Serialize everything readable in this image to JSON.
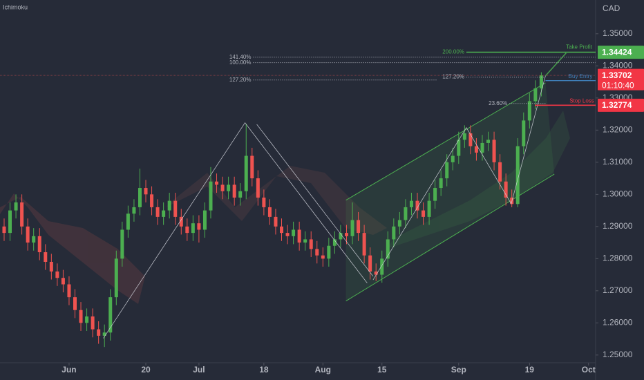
{
  "chart_data": {
    "type": "candlestick",
    "indicator_label": "Ichimoku",
    "currency": "CAD",
    "countdown": "01:10:40",
    "up_color": "#4caf50",
    "down_color": "#ef5350",
    "grid": false,
    "xlim": [
      -11.7,
      89.2
    ],
    "ylim": [
      1.2476,
      1.3605
    ],
    "xticks": [
      {
        "value": 0,
        "label": "Jun"
      },
      {
        "value": 13,
        "label": "20"
      },
      {
        "value": 22,
        "label": "Jul"
      },
      {
        "value": 33,
        "label": "18"
      },
      {
        "value": 43,
        "label": "Aug"
      },
      {
        "value": 53,
        "label": "15"
      },
      {
        "value": 66,
        "label": "Sep"
      },
      {
        "value": 78,
        "label": "19"
      },
      {
        "value": 88,
        "label": "Oct"
      }
    ],
    "yticks": [
      {
        "value": 1.35,
        "label": "1.35000"
      },
      {
        "value": 1.34,
        "label": "1.34000"
      },
      {
        "value": 1.33,
        "label": "1.33000"
      },
      {
        "value": 1.32,
        "label": "1.32000"
      },
      {
        "value": 1.31,
        "label": "1.31000"
      },
      {
        "value": 1.3,
        "label": "1.30000"
      },
      {
        "value": 1.29,
        "label": "1.29000"
      },
      {
        "value": 1.28,
        "label": "1.28000"
      },
      {
        "value": 1.27,
        "label": "1.27000"
      },
      {
        "value": 1.26,
        "label": "1.26000"
      },
      {
        "value": 1.25,
        "label": "1.25000"
      }
    ],
    "x": [
      -11,
      -10,
      -9,
      -8,
      -7,
      -6,
      -5,
      -4,
      -3,
      -2,
      -1,
      0,
      1,
      2,
      3,
      4,
      5,
      6,
      7,
      8,
      9,
      10,
      11,
      12,
      13,
      14,
      15,
      16,
      17,
      18,
      19,
      20,
      21,
      22,
      23,
      24,
      25,
      26,
      27,
      28,
      29,
      30,
      31,
      32,
      33,
      34,
      35,
      36,
      37,
      38,
      39,
      40,
      41,
      42,
      43,
      44,
      45,
      46,
      47,
      48,
      49,
      50,
      51,
      52,
      53,
      54,
      55,
      56,
      57,
      58,
      59,
      60,
      61,
      62,
      63,
      64,
      65,
      66,
      67,
      68,
      69,
      70,
      71,
      72,
      73,
      74,
      75,
      76,
      77,
      78,
      79,
      80
    ],
    "open": [
      1.29,
      1.288,
      1.295,
      1.2975,
      1.29,
      1.285,
      1.287,
      1.282,
      1.279,
      1.276,
      1.274,
      1.272,
      1.268,
      1.264,
      1.26,
      1.262,
      1.258,
      1.256,
      1.257,
      1.268,
      1.28,
      1.289,
      1.294,
      1.296,
      1.302,
      1.3,
      1.296,
      1.293,
      1.295,
      1.298,
      1.293,
      1.29,
      1.288,
      1.291,
      1.289,
      1.295,
      1.304,
      1.303,
      1.301,
      1.303,
      1.299,
      1.301,
      1.312,
      1.305,
      1.299,
      1.296,
      1.293,
      1.29,
      1.288,
      1.287,
      1.289,
      1.285,
      1.286,
      1.283,
      1.281,
      1.28,
      1.284,
      1.286,
      1.288,
      1.287,
      1.292,
      1.288,
      1.281,
      1.276,
      1.275,
      1.28,
      1.286,
      1.29,
      1.292,
      1.296,
      1.298,
      1.295,
      1.293,
      1.298,
      1.302,
      1.305,
      1.31,
      1.312,
      1.317,
      1.319,
      1.315,
      1.313,
      1.316,
      1.317,
      1.31,
      1.304,
      1.299,
      1.297,
      1.315,
      1.323,
      1.329,
      1.333
    ],
    "high": [
      1.2925,
      1.2975,
      1.3,
      1.3,
      1.2925,
      1.2895,
      1.2895,
      1.2845,
      1.2815,
      1.2785,
      1.2765,
      1.2745,
      1.2705,
      1.2665,
      1.2645,
      1.2645,
      1.2605,
      1.2595,
      1.2705,
      1.2825,
      1.2915,
      1.2965,
      1.2985,
      1.308,
      1.3045,
      1.3025,
      1.2985,
      1.2975,
      1.3005,
      1.3005,
      1.2955,
      1.2925,
      1.2935,
      1.2935,
      1.2975,
      1.3085,
      1.3065,
      1.3055,
      1.3055,
      1.3055,
      1.3035,
      1.322,
      1.3145,
      1.3075,
      1.3015,
      1.2985,
      1.2955,
      1.2925,
      1.2905,
      1.2915,
      1.2915,
      1.2885,
      1.2885,
      1.2855,
      1.2835,
      1.2865,
      1.2885,
      1.2905,
      1.2905,
      1.2975,
      1.2945,
      1.2905,
      1.2835,
      1.2785,
      1.2825,
      1.2885,
      1.2925,
      1.2945,
      1.2985,
      1.3005,
      1.3005,
      1.2975,
      1.3005,
      1.3045,
      1.3075,
      1.3125,
      1.3145,
      1.3195,
      1.3215,
      1.3215,
      1.3175,
      1.3185,
      1.3195,
      1.3195,
      1.3125,
      1.3065,
      1.3015,
      1.3175,
      1.3255,
      1.3315,
      1.3355,
      1.338
    ],
    "low": [
      1.2855,
      1.2855,
      1.2925,
      1.2875,
      1.2825,
      1.2825,
      1.2795,
      1.2765,
      1.2735,
      1.2715,
      1.2695,
      1.2655,
      1.2615,
      1.2575,
      1.2575,
      1.2555,
      1.2535,
      1.2525,
      1.2545,
      1.2655,
      1.2775,
      1.2865,
      1.2915,
      1.2935,
      1.2975,
      1.2935,
      1.2905,
      1.2905,
      1.2925,
      1.2905,
      1.2875,
      1.2855,
      1.2855,
      1.285,
      1.2865,
      1.2925,
      1.3005,
      1.2985,
      1.2985,
      1.2965,
      1.2965,
      1.2985,
      1.3025,
      1.2965,
      1.2935,
      1.2905,
      1.2875,
      1.2855,
      1.2845,
      1.2845,
      1.2825,
      1.2825,
      1.2805,
      1.2785,
      1.2775,
      1.2775,
      1.2815,
      1.2835,
      1.2845,
      1.2845,
      1.2855,
      1.2785,
      1.2735,
      1.273,
      1.2725,
      1.2775,
      1.2835,
      1.2875,
      1.2895,
      1.2935,
      1.2925,
      1.2905,
      1.2905,
      1.2955,
      1.2995,
      1.3025,
      1.3075,
      1.3095,
      1.3145,
      1.3125,
      1.3105,
      1.3105,
      1.3135,
      1.3075,
      1.3015,
      1.2965,
      1.296,
      1.296,
      1.3125,
      1.3205,
      1.3265,
      1.3305
    ],
    "close": [
      1.288,
      1.295,
      1.2975,
      1.29,
      1.285,
      1.287,
      1.282,
      1.279,
      1.276,
      1.274,
      1.272,
      1.268,
      1.264,
      1.26,
      1.262,
      1.258,
      1.256,
      1.257,
      1.268,
      1.28,
      1.289,
      1.294,
      1.296,
      1.302,
      1.3,
      1.296,
      1.293,
      1.295,
      1.298,
      1.293,
      1.29,
      1.288,
      1.291,
      1.289,
      1.295,
      1.304,
      1.303,
      1.301,
      1.303,
      1.299,
      1.301,
      1.312,
      1.305,
      1.299,
      1.296,
      1.293,
      1.29,
      1.288,
      1.287,
      1.289,
      1.285,
      1.286,
      1.283,
      1.281,
      1.28,
      1.284,
      1.286,
      1.288,
      1.287,
      1.292,
      1.288,
      1.281,
      1.276,
      1.275,
      1.28,
      1.286,
      1.29,
      1.292,
      1.296,
      1.298,
      1.295,
      1.293,
      1.298,
      1.302,
      1.305,
      1.31,
      1.312,
      1.317,
      1.319,
      1.315,
      1.313,
      1.316,
      1.317,
      1.31,
      1.304,
      1.299,
      1.297,
      1.315,
      1.323,
      1.329,
      1.333,
      1.33702
    ],
    "levels": [
      {
        "label": "141.40%",
        "value": 1.3427,
        "x0": 31.2,
        "x1": 89.2,
        "color": "#b2b5be",
        "dashed": true
      },
      {
        "label": "100.00%",
        "value": 1.341,
        "x0": 31.2,
        "x1": 89.2,
        "color": "#b2b5be",
        "dashed": true
      },
      {
        "label": "127.20%",
        "value": 1.3356,
        "x0": 31.2,
        "x1": 62.3,
        "color": "#b2b5be",
        "dashed": true
      },
      {
        "label": "200.00%",
        "value": 1.34424,
        "x0": 67.3,
        "x1": 89.2,
        "color": "#4caf50",
        "dashed": false
      },
      {
        "label": "127.20%",
        "value": 1.3365,
        "x0": 67.3,
        "x1": 80.7,
        "color": "#b2b5be",
        "dashed": true
      },
      {
        "label": "23.60%",
        "value": 1.3283,
        "x0": 74.6,
        "x1": 80.7,
        "color": "#b2b5be",
        "dashed": true
      }
    ],
    "trade": {
      "take_profit": {
        "label": "Take Profit",
        "value": 1.34424,
        "color": "#4caf50"
      },
      "entry": {
        "label": "Buy Entry",
        "value": 1.3354,
        "x0": 80.7,
        "color": "#3f7fb8"
      },
      "stop_loss": {
        "label": "Stop Loss",
        "value": 1.32774,
        "x0": 78.9,
        "color": "#f23645"
      }
    },
    "channel": {
      "color": "#4caf50",
      "upper": [
        [
          46.9,
          1.2982
        ],
        [
          80.7,
          1.3347
        ]
      ],
      "lower": [
        [
          46.9,
          1.2668
        ],
        [
          82.2,
          1.3063
        ]
      ]
    },
    "drawings": [
      {
        "color": "#d1d4dc",
        "points": [
          [
            5.8,
            1.2552
          ],
          [
            29.8,
            1.3223
          ],
          [
            50.5,
            1.2724
          ]
        ]
      },
      {
        "color": "#d1d4dc",
        "points": [
          [
            31.8,
            1.3218
          ],
          [
            51.5,
            1.2745
          ]
        ]
      },
      {
        "color": "#d1d4dc",
        "points": [
          [
            51.5,
            1.2734
          ],
          [
            67.3,
            1.3208
          ],
          [
            74.9,
            1.2971
          ],
          [
            80.7,
            1.3369
          ]
        ]
      },
      {
        "color": "#4caf50",
        "points": [
          [
            80.7,
            1.3369
          ],
          [
            84.2,
            1.344
          ]
        ]
      }
    ]
  }
}
